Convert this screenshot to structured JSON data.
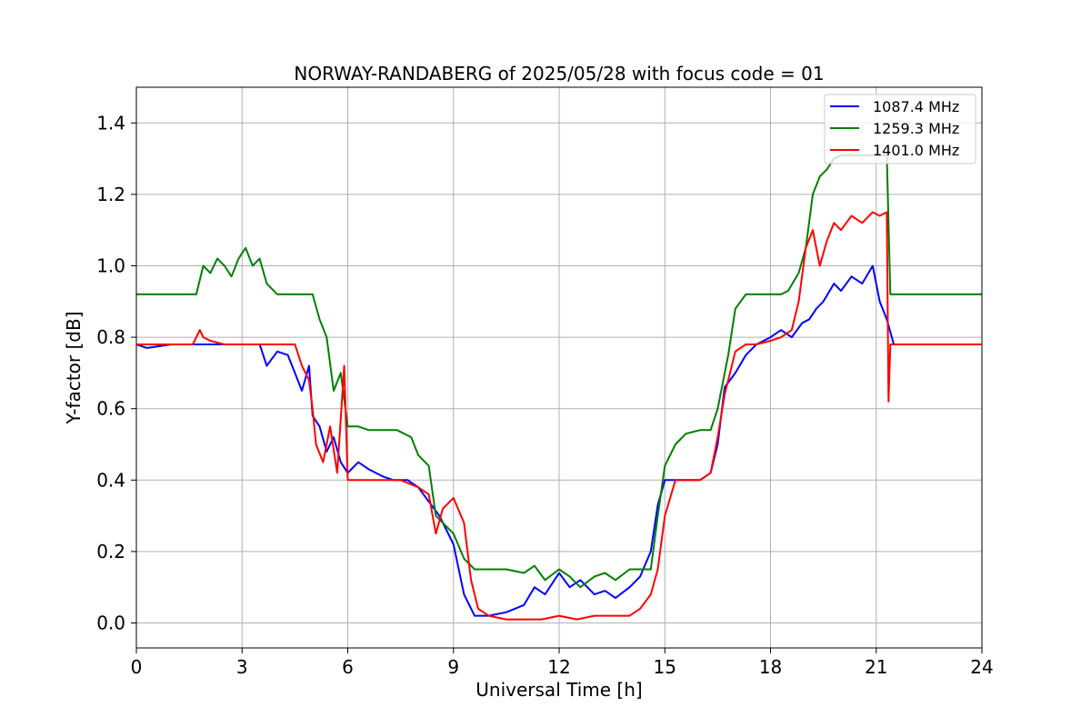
{
  "chart_data": {
    "type": "line",
    "title": "NORWAY-RANDABERG of 2025/05/28 with focus code = 01",
    "xlabel": "Universal Time [h]",
    "ylabel": "Y-factor [dB]",
    "xlim": [
      0,
      24
    ],
    "ylim": [
      -0.07,
      1.5
    ],
    "xticks": [
      0,
      3,
      6,
      9,
      12,
      15,
      18,
      21,
      24
    ],
    "xtick_labels": [
      "0",
      "3",
      "6",
      "9",
      "12",
      "15",
      "18",
      "21",
      "24"
    ],
    "yticks": [
      0.0,
      0.2,
      0.4,
      0.6,
      0.8,
      1.0,
      1.2,
      1.4
    ],
    "ytick_labels": [
      "0.0",
      "0.2",
      "0.4",
      "0.6",
      "0.8",
      "1.0",
      "1.2",
      "1.4"
    ],
    "grid": true,
    "legend_position": "top-right",
    "series": [
      {
        "name": "1087.4 MHz",
        "color": "#0000ff",
        "x": [
          0,
          0.3,
          1.0,
          1.8,
          3.0,
          3.5,
          3.7,
          4.0,
          4.3,
          4.5,
          4.7,
          4.9,
          5.0,
          5.2,
          5.4,
          5.6,
          5.8,
          6.0,
          6.3,
          6.6,
          7.0,
          7.3,
          7.7,
          8.0,
          8.3,
          8.6,
          9.0,
          9.3,
          9.6,
          10.0,
          10.5,
          11.0,
          11.3,
          11.6,
          12.0,
          12.3,
          12.6,
          13.0,
          13.3,
          13.6,
          14.0,
          14.3,
          14.6,
          14.8,
          15.0,
          15.3,
          15.6,
          16.0,
          16.3,
          16.5,
          16.7,
          17.0,
          17.3,
          17.6,
          18.0,
          18.3,
          18.6,
          18.9,
          19.1,
          19.3,
          19.5,
          19.8,
          20.0,
          20.3,
          20.6,
          20.9,
          21.1,
          21.3,
          21.5,
          22.0,
          22.5,
          23.0,
          23.5,
          24.0
        ],
        "values": [
          0.78,
          0.77,
          0.78,
          0.78,
          0.78,
          0.78,
          0.72,
          0.76,
          0.75,
          0.7,
          0.65,
          0.72,
          0.58,
          0.55,
          0.48,
          0.52,
          0.45,
          0.42,
          0.45,
          0.43,
          0.41,
          0.4,
          0.4,
          0.38,
          0.34,
          0.3,
          0.22,
          0.08,
          0.02,
          0.02,
          0.03,
          0.05,
          0.1,
          0.08,
          0.14,
          0.1,
          0.12,
          0.08,
          0.09,
          0.07,
          0.1,
          0.13,
          0.2,
          0.33,
          0.4,
          0.4,
          0.4,
          0.4,
          0.42,
          0.5,
          0.66,
          0.7,
          0.75,
          0.78,
          0.8,
          0.82,
          0.8,
          0.84,
          0.85,
          0.88,
          0.9,
          0.95,
          0.93,
          0.97,
          0.95,
          1.0,
          0.9,
          0.85,
          0.78,
          0.78,
          0.78,
          0.78,
          0.78,
          0.78
        ]
      },
      {
        "name": "1259.3 MHz",
        "color": "#008000",
        "x": [
          0,
          0.3,
          1.0,
          1.7,
          1.9,
          2.1,
          2.3,
          2.5,
          2.7,
          2.9,
          3.1,
          3.3,
          3.5,
          3.7,
          4.0,
          4.5,
          5.0,
          5.2,
          5.4,
          5.6,
          5.8,
          6.0,
          6.3,
          6.6,
          7.0,
          7.4,
          7.8,
          8.0,
          8.3,
          8.5,
          8.7,
          9.0,
          9.3,
          9.6,
          10.0,
          10.5,
          11.0,
          11.3,
          11.6,
          12.0,
          12.3,
          12.6,
          13.0,
          13.3,
          13.6,
          14.0,
          14.3,
          14.6,
          14.8,
          15.0,
          15.3,
          15.6,
          16.0,
          16.3,
          16.5,
          16.8,
          17.0,
          17.3,
          17.6,
          18.0,
          18.3,
          18.5,
          18.8,
          19.0,
          19.2,
          19.4,
          19.6,
          19.8,
          20.0,
          20.3,
          20.6,
          20.9,
          21.1,
          21.3,
          21.4,
          21.6,
          22.0,
          22.5,
          23.0,
          23.5,
          24.0
        ],
        "values": [
          0.92,
          0.92,
          0.92,
          0.92,
          1.0,
          0.98,
          1.02,
          1.0,
          0.97,
          1.02,
          1.05,
          1.0,
          1.02,
          0.95,
          0.92,
          0.92,
          0.92,
          0.85,
          0.8,
          0.65,
          0.7,
          0.55,
          0.55,
          0.54,
          0.54,
          0.54,
          0.52,
          0.47,
          0.44,
          0.3,
          0.28,
          0.25,
          0.18,
          0.15,
          0.15,
          0.15,
          0.14,
          0.16,
          0.12,
          0.15,
          0.13,
          0.1,
          0.13,
          0.14,
          0.12,
          0.15,
          0.15,
          0.15,
          0.3,
          0.44,
          0.5,
          0.53,
          0.54,
          0.54,
          0.6,
          0.75,
          0.88,
          0.92,
          0.92,
          0.92,
          0.92,
          0.93,
          0.98,
          1.05,
          1.2,
          1.25,
          1.27,
          1.3,
          1.31,
          1.31,
          1.31,
          1.31,
          1.31,
          1.31,
          0.92,
          0.92,
          0.92,
          0.92,
          0.92,
          0.92,
          0.92
        ]
      },
      {
        "name": "1401.0 MHz",
        "color": "#ff0000",
        "x": [
          0,
          0.5,
          1.0,
          1.6,
          1.8,
          1.9,
          2.1,
          2.5,
          3.0,
          3.5,
          4.0,
          4.5,
          4.7,
          4.9,
          5.0,
          5.1,
          5.3,
          5.5,
          5.7,
          5.9,
          6.0,
          6.3,
          6.6,
          7.0,
          7.5,
          8.0,
          8.3,
          8.5,
          8.7,
          9.0,
          9.3,
          9.5,
          9.7,
          10.0,
          10.5,
          11.0,
          11.5,
          12.0,
          12.5,
          13.0,
          13.5,
          14.0,
          14.3,
          14.6,
          14.8,
          15.0,
          15.3,
          15.6,
          16.0,
          16.3,
          16.5,
          16.7,
          17.0,
          17.3,
          17.6,
          18.0,
          18.3,
          18.6,
          18.8,
          19.0,
          19.2,
          19.4,
          19.6,
          19.8,
          20.0,
          20.3,
          20.6,
          20.9,
          21.1,
          21.3,
          21.35,
          21.4,
          21.6,
          22.0,
          22.5,
          23.0,
          23.5,
          24.0
        ],
        "values": [
          0.78,
          0.78,
          0.78,
          0.78,
          0.82,
          0.8,
          0.79,
          0.78,
          0.78,
          0.78,
          0.78,
          0.78,
          0.72,
          0.68,
          0.6,
          0.5,
          0.45,
          0.55,
          0.42,
          0.72,
          0.4,
          0.4,
          0.4,
          0.4,
          0.4,
          0.38,
          0.36,
          0.25,
          0.32,
          0.35,
          0.28,
          0.12,
          0.04,
          0.02,
          0.01,
          0.01,
          0.01,
          0.02,
          0.01,
          0.02,
          0.02,
          0.02,
          0.04,
          0.08,
          0.15,
          0.3,
          0.4,
          0.4,
          0.4,
          0.42,
          0.52,
          0.64,
          0.76,
          0.78,
          0.78,
          0.79,
          0.8,
          0.82,
          0.9,
          1.05,
          1.1,
          1.0,
          1.07,
          1.12,
          1.1,
          1.14,
          1.12,
          1.15,
          1.14,
          1.15,
          0.62,
          0.78,
          0.78,
          0.78,
          0.78,
          0.78,
          0.78,
          0.78
        ]
      }
    ]
  }
}
